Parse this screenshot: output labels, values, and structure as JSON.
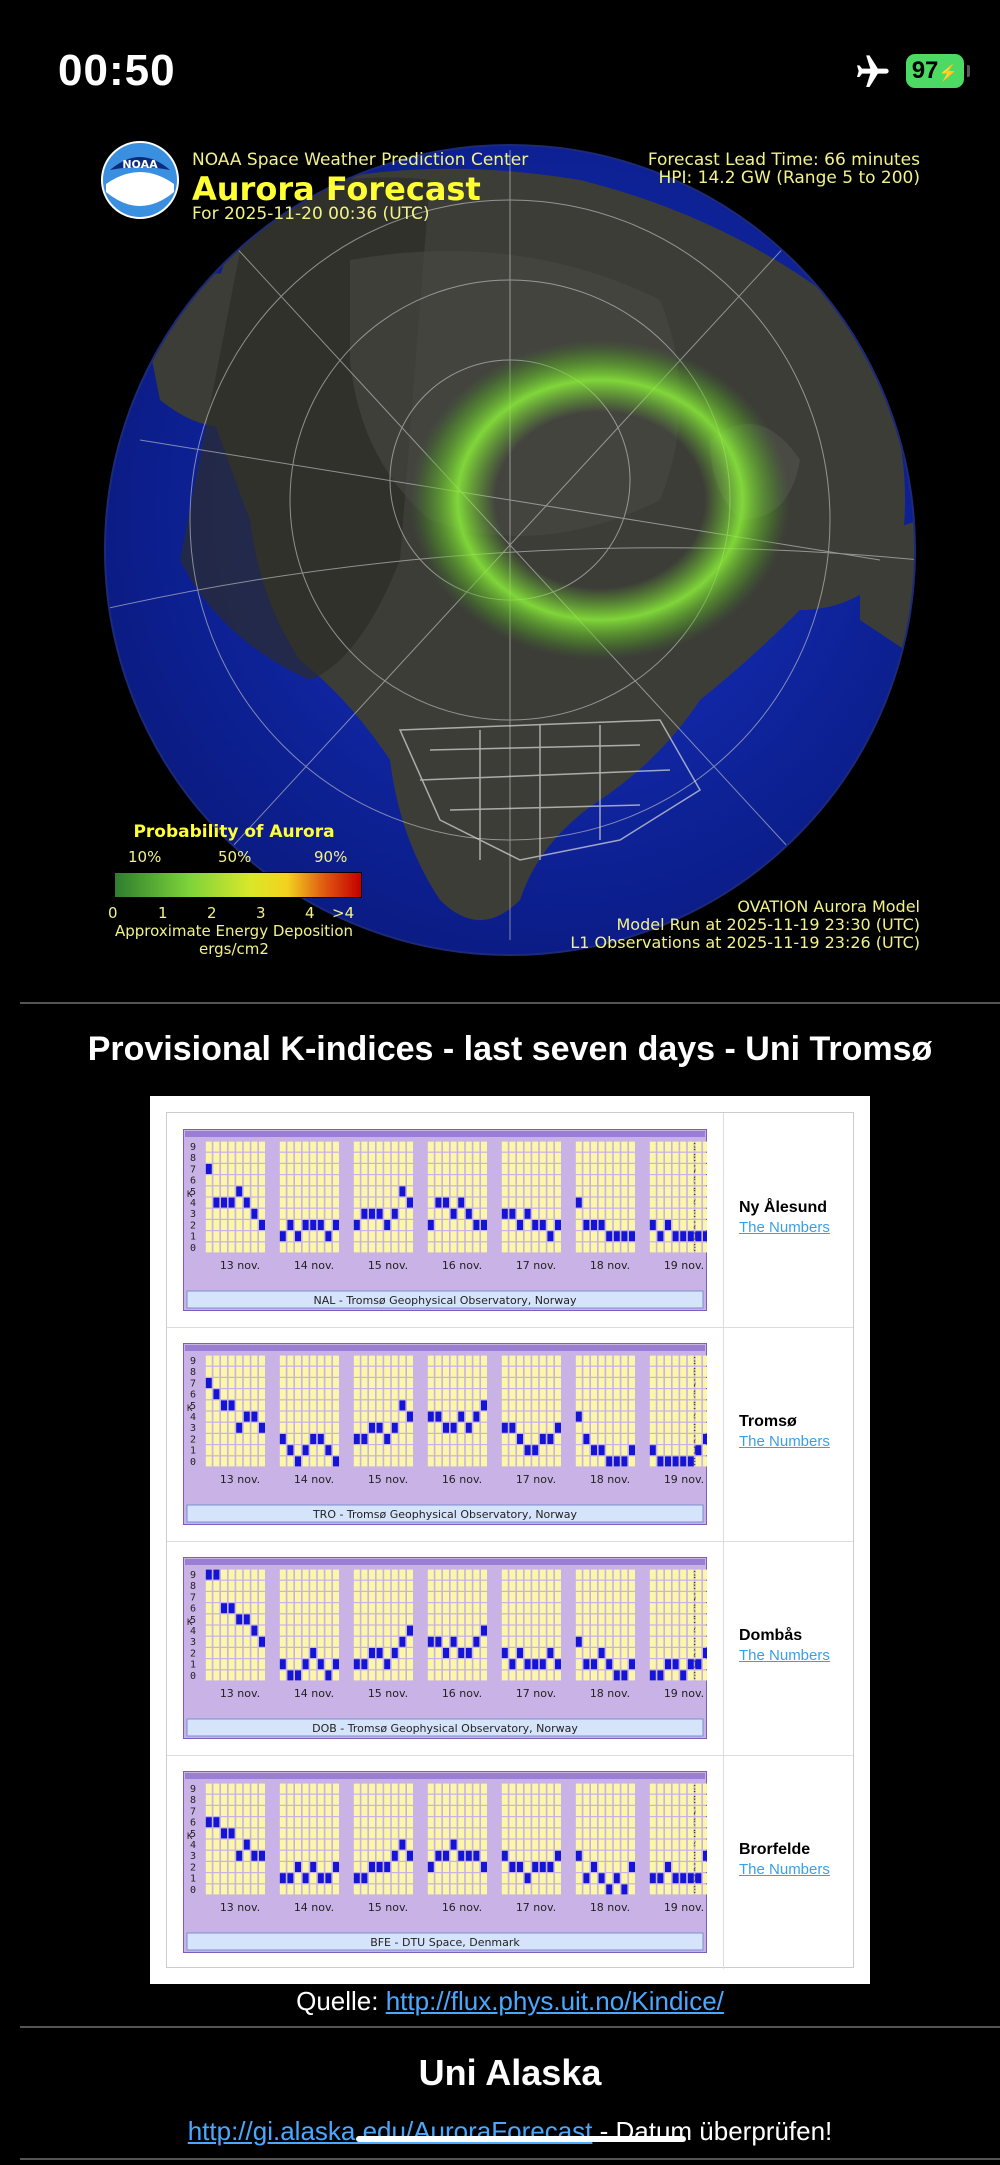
{
  "status": {
    "time": "00:50",
    "battery": "97"
  },
  "aurora": {
    "center": "NOAA Space Weather Prediction Center",
    "title": "Aurora Forecast",
    "date": "For 2025-11-20 00:36 (UTC)",
    "lead_time": "Forecast Lead Time:  66 minutes",
    "hpi": "HPI:  14.2 GW (Range 5 to 200)",
    "legend_title": "Probability of Aurora",
    "legend_pcts": [
      "10%",
      "50%",
      "90%"
    ],
    "legend_ticks": [
      "0",
      "1",
      "2",
      "3",
      "4",
      ">4"
    ],
    "legend_caption_1": "Approximate Energy Deposition",
    "legend_caption_2": "ergs/cm2",
    "model_1": "OVATION Aurora Model",
    "model_2": "Model Run at 2025-11-19 23:30 (UTC)",
    "model_3": "L1 Observations at 2025-11-19 23:26 (UTC)"
  },
  "k_section": {
    "heading": "Provisional K-indices - last seven days - Uni Tromsø",
    "days": [
      "13 nov.",
      "14 nov.",
      "15 nov.",
      "16 nov.",
      "17 nov.",
      "18 nov.",
      "19 nov."
    ],
    "y_labels": [
      "9",
      "8",
      "7",
      "6",
      "5",
      "4",
      "3",
      "2",
      "1",
      "0"
    ],
    "k_letter": "K",
    "numbers_link": "The Numbers",
    "stations": [
      {
        "name": "Ny Ålesund",
        "caption": "NAL - Tromsø Geophysical Observatory, Norway",
        "k": [
          [
            7,
            4,
            4,
            4,
            5,
            4,
            3,
            2
          ],
          [
            1,
            2,
            1,
            2,
            2,
            2,
            1,
            2
          ],
          [
            2,
            3,
            3,
            3,
            2,
            3,
            5,
            4
          ],
          [
            2,
            4,
            4,
            3,
            4,
            3,
            2,
            2
          ],
          [
            3,
            3,
            2,
            3,
            2,
            2,
            1,
            2
          ],
          [
            4,
            2,
            2,
            2,
            1,
            1,
            1,
            1
          ],
          [
            2,
            1,
            2,
            1,
            1,
            1,
            1,
            1
          ]
        ]
      },
      {
        "name": "Tromsø",
        "caption": "TRO - Tromsø Geophysical Observatory, Norway",
        "k": [
          [
            7,
            6,
            5,
            5,
            3,
            4,
            4,
            3
          ],
          [
            2,
            1,
            0,
            1,
            2,
            2,
            1,
            0
          ],
          [
            2,
            2,
            3,
            3,
            2,
            3,
            5,
            4
          ],
          [
            4,
            4,
            3,
            3,
            4,
            3,
            4,
            5
          ],
          [
            3,
            3,
            2,
            1,
            1,
            2,
            2,
            3
          ],
          [
            4,
            2,
            1,
            1,
            0,
            0,
            0,
            1
          ],
          [
            1,
            0,
            0,
            0,
            0,
            0,
            1,
            2
          ]
        ]
      },
      {
        "name": "Dombås",
        "caption": "DOB - Tromsø Geophysical Observatory, Norway",
        "k": [
          [
            9,
            9,
            6,
            6,
            5,
            5,
            4,
            3
          ],
          [
            1,
            0,
            0,
            1,
            2,
            1,
            0,
            1
          ],
          [
            1,
            1,
            2,
            2,
            1,
            2,
            3,
            4
          ],
          [
            3,
            3,
            2,
            3,
            2,
            2,
            3,
            4
          ],
          [
            2,
            1,
            2,
            1,
            1,
            1,
            2,
            1
          ],
          [
            3,
            1,
            1,
            2,
            1,
            0,
            0,
            1
          ],
          [
            0,
            0,
            1,
            1,
            0,
            1,
            1,
            2
          ]
        ]
      },
      {
        "name": "Brorfelde",
        "caption": "BFE - DTU Space, Denmark",
        "k": [
          [
            6,
            6,
            5,
            5,
            3,
            4,
            3,
            3
          ],
          [
            1,
            1,
            2,
            1,
            2,
            1,
            1,
            2
          ],
          [
            1,
            1,
            2,
            2,
            2,
            3,
            4,
            3
          ],
          [
            2,
            3,
            3,
            4,
            3,
            3,
            3,
            2
          ],
          [
            3,
            2,
            2,
            1,
            2,
            2,
            2,
            3
          ],
          [
            3,
            1,
            2,
            1,
            0,
            1,
            0,
            2
          ],
          [
            1,
            1,
            2,
            1,
            1,
            1,
            1,
            3
          ]
        ]
      }
    ]
  },
  "source": {
    "label": "Quelle: ",
    "url": "http://flux.phys.uit.no/Kindice/"
  },
  "alaska": {
    "heading": "Uni Alaska",
    "url": "http://gi.alaska.edu/AuroraForecast",
    "note": " - Datum überprüfen!"
  }
}
